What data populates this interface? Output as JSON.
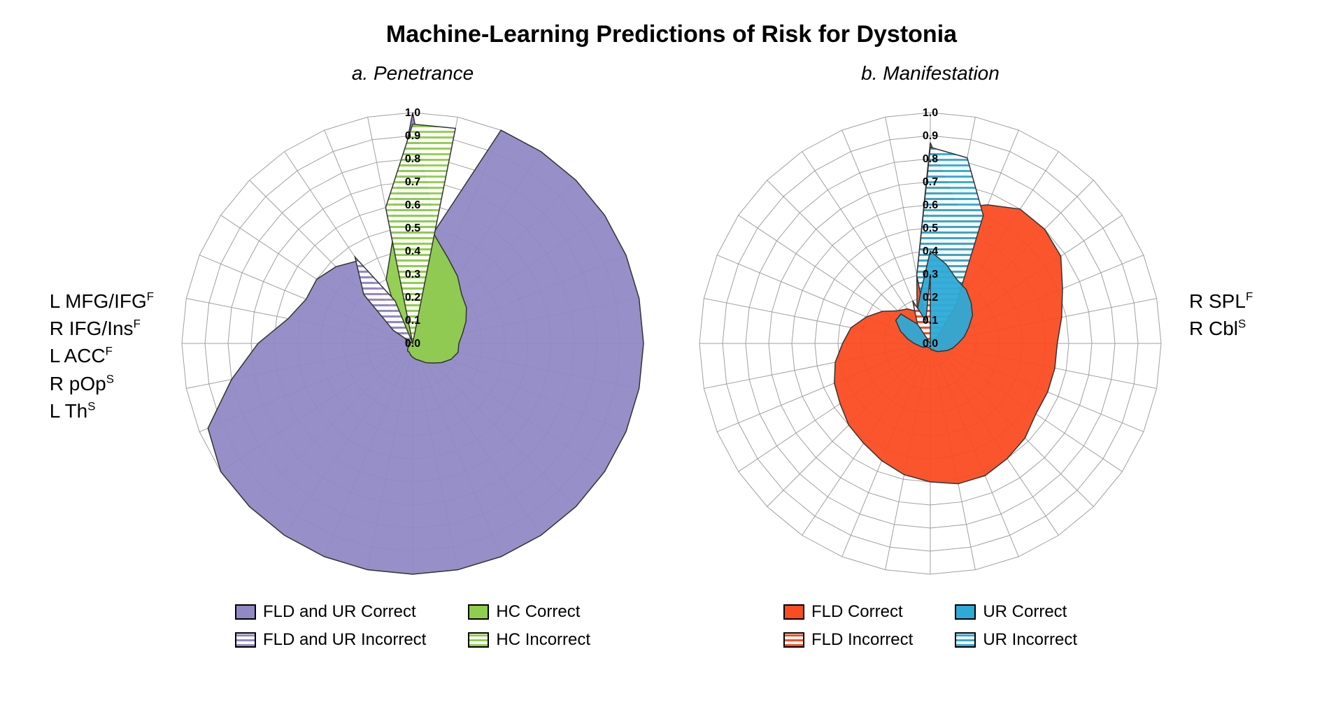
{
  "title": "Machine-Learning Predictions of Risk for Dystonia",
  "colors": {
    "purple": "#9189c4",
    "green": "#8fce4c",
    "red": "#fa4c21",
    "blue": "#2eaad6",
    "grid": "#a0a0a0",
    "stroke": "#333333"
  },
  "radar": {
    "radius": 330,
    "n_spokes": 32,
    "rings": [
      0.1,
      0.2,
      0.3,
      0.4,
      0.5,
      0.6,
      0.7,
      0.8,
      0.9,
      1.0
    ],
    "tick_labels": [
      "0.0",
      "0.1",
      "0.2",
      "0.3",
      "0.4",
      "0.5",
      "0.6",
      "0.7",
      "0.8",
      "0.9",
      "1.0"
    ],
    "tick_fontsize": 16
  },
  "chartA": {
    "subtitle": "a. Penetrance",
    "side_labels_html": "L MFG/IFG<sup>F</sup><br>R IFG/Ins<sup>F</sup><br>L ACC<sup>F</sup><br>R pOp<sup>S</sup><br>L Th<sup>S</sup>",
    "series": [
      {
        "name": "fld_ur_correct",
        "label": "FLD and UR Correct",
        "fill": "#9189c4",
        "pattern": null,
        "values": [
          1.0,
          0.5,
          1.0,
          1.0,
          1.0,
          1.0,
          1.0,
          1.0,
          1.0,
          1.0,
          1.0,
          1.0,
          1.0,
          1.0,
          1.0,
          1.0,
          1.0,
          1.0,
          1.0,
          1.0,
          1.0,
          1.0,
          0.96,
          0.8,
          0.67,
          0.55,
          0.5,
          0.5,
          0.47,
          0.43,
          0.0,
          0.5
        ]
      },
      {
        "name": "hc_correct",
        "label": "HC Correct",
        "fill": "#8fce4c",
        "pattern": null,
        "values": [
          0.5,
          0.48,
          0.4,
          0.35,
          0.3,
          0.28,
          0.25,
          0.22,
          0.2,
          0.2,
          0.18,
          0.15,
          0.12,
          0.1,
          0.08,
          0.07,
          0.06,
          0.05,
          0.04,
          0.04,
          0.03,
          0.02,
          0.02,
          0.02,
          0.02,
          0.02,
          0.03,
          0.04,
          0.06,
          0.1,
          0.3,
          0.45
        ]
      },
      {
        "name": "fld_ur_incorrect",
        "label": "FLD and UR Incorrect",
        "fill": "#9189c4",
        "pattern": "h",
        "values": [
          0.0,
          0.0,
          0.0,
          0.0,
          0.0,
          0.0,
          0.0,
          0.0,
          0.0,
          0.0,
          0.0,
          0.0,
          0.0,
          0.0,
          0.0,
          0.0,
          0.0,
          0.0,
          0.0,
          0.0,
          0.0,
          0.0,
          0.0,
          0.0,
          0.0,
          0.0,
          0.0,
          0.1,
          0.3,
          0.45,
          0.2,
          0.0
        ]
      },
      {
        "name": "hc_incorrect",
        "label": "HC Incorrect",
        "fill": "#8fce4c",
        "pattern": "h",
        "values": [
          0.95,
          0.95,
          0.0,
          0.0,
          0.0,
          0.0,
          0.0,
          0.0,
          0.0,
          0.0,
          0.0,
          0.0,
          0.0,
          0.0,
          0.0,
          0.0,
          0.0,
          0.0,
          0.0,
          0.0,
          0.0,
          0.0,
          0.0,
          0.0,
          0.0,
          0.0,
          0.0,
          0.0,
          0.0,
          0.0,
          0.0,
          0.6
        ]
      }
    ],
    "legend": [
      {
        "label": "FLD and UR Correct",
        "fill": "#9189c4",
        "pattern": null
      },
      {
        "label": "HC Correct",
        "fill": "#8fce4c",
        "pattern": null
      },
      {
        "label": "FLD and UR Incorrect",
        "fill": "#9189c4",
        "pattern": "h"
      },
      {
        "label": "HC Incorrect",
        "fill": "#8fce4c",
        "pattern": "h"
      }
    ]
  },
  "chartB": {
    "subtitle": "b. Manifestation",
    "side_labels_html": "R SPL<sup>F</sup><br>R Cbl<sup>S</sup>",
    "series": [
      {
        "name": "fld_correct",
        "label": "FLD Correct",
        "fill": "#fa4c21",
        "pattern": null,
        "values": [
          0.87,
          0.6,
          0.65,
          0.7,
          0.7,
          0.68,
          0.62,
          0.58,
          0.55,
          0.55,
          0.55,
          0.55,
          0.58,
          0.6,
          0.62,
          0.62,
          0.6,
          0.58,
          0.55,
          0.52,
          0.5,
          0.47,
          0.45,
          0.42,
          0.38,
          0.35,
          0.3,
          0.25,
          0.2,
          0.18,
          0.15,
          0.3
        ]
      },
      {
        "name": "ur_incorrect",
        "label": "UR Incorrect",
        "fill": "#2eaad6",
        "pattern": "h",
        "values": [
          0.85,
          0.82,
          0.6,
          0.2,
          0.05,
          0.0,
          0.0,
          0.0,
          0.0,
          0.0,
          0.0,
          0.0,
          0.0,
          0.0,
          0.0,
          0.0,
          0.0,
          0.0,
          0.0,
          0.0,
          0.0,
          0.0,
          0.0,
          0.0,
          0.0,
          0.0,
          0.0,
          0.0,
          0.0,
          0.0,
          0.0,
          0.3
        ]
      },
      {
        "name": "ur_correct",
        "label": "UR Correct",
        "fill": "#2eaad6",
        "pattern": null,
        "values": [
          0.4,
          0.35,
          0.3,
          0.28,
          0.25,
          0.22,
          0.18,
          0.15,
          0.12,
          0.1,
          0.08,
          0.06,
          0.05,
          0.04,
          0.03,
          0.03,
          0.02,
          0.02,
          0.02,
          0.02,
          0.02,
          0.03,
          0.04,
          0.05,
          0.07,
          0.1,
          0.14,
          0.18,
          0.18,
          0.1,
          0.15,
          0.22
        ]
      },
      {
        "name": "fld_incorrect",
        "label": "FLD Incorrect",
        "fill": "#fa4c21",
        "pattern": "h",
        "values": [
          0.3,
          0.0,
          0.0,
          0.0,
          0.0,
          0.0,
          0.0,
          0.0,
          0.0,
          0.0,
          0.0,
          0.0,
          0.0,
          0.0,
          0.0,
          0.0,
          0.0,
          0.0,
          0.0,
          0.0,
          0.0,
          0.0,
          0.0,
          0.0,
          0.0,
          0.0,
          0.0,
          0.0,
          0.0,
          0.1,
          0.2,
          0.1
        ]
      }
    ],
    "legend": [
      {
        "label": "FLD Correct",
        "fill": "#fa4c21",
        "pattern": null
      },
      {
        "label": "UR Correct",
        "fill": "#2eaad6",
        "pattern": null
      },
      {
        "label": "FLD Incorrect",
        "fill": "#fa4c21",
        "pattern": "h"
      },
      {
        "label": "UR Incorrect",
        "fill": "#2eaad6",
        "pattern": "h"
      }
    ]
  }
}
